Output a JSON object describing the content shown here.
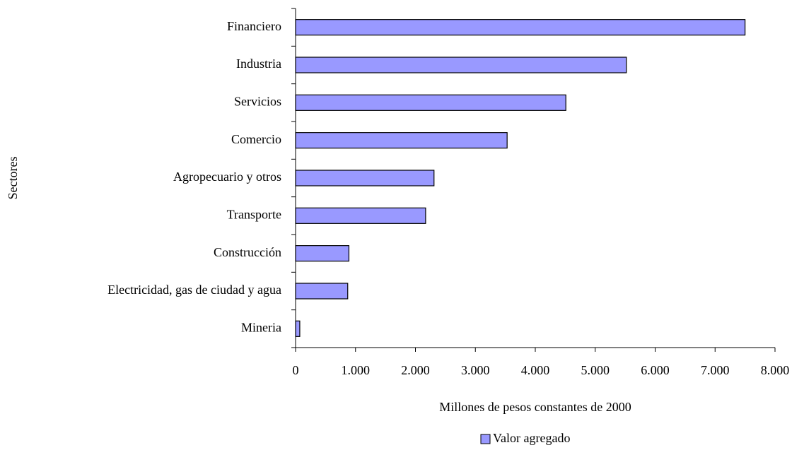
{
  "chart_data": {
    "type": "bar",
    "orientation": "horizontal",
    "categories": [
      "Financiero",
      "Industria",
      "Servicios",
      "Comercio",
      "Agropecuario y otros",
      "Transporte",
      "Construcción",
      "Electricidad, gas de ciudad y agua",
      "Mineria"
    ],
    "series": [
      {
        "name": "Valor agregado",
        "color": "#9999ff",
        "values": [
          7500,
          5520,
          4510,
          3530,
          2310,
          2170,
          890,
          870,
          70
        ]
      }
    ],
    "xlim": [
      0,
      8000
    ],
    "xticks": [
      0,
      {
        "value": 1000,
        "label": "1.000"
      },
      {
        "value": 2000,
        "label": "2.000"
      },
      {
        "value": 3000,
        "label": "3.000"
      },
      {
        "value": 4000,
        "label": "4.000"
      },
      {
        "value": 5000,
        "label": "5.000"
      },
      {
        "value": 6000,
        "label": "6.000"
      },
      {
        "value": 7000,
        "label": "7.000"
      },
      {
        "value": 8000,
        "label": "8.000"
      }
    ],
    "xlabel": "Millones de pesos constantes de 2000",
    "ylabel": "Sectores",
    "legend": "bottom"
  }
}
